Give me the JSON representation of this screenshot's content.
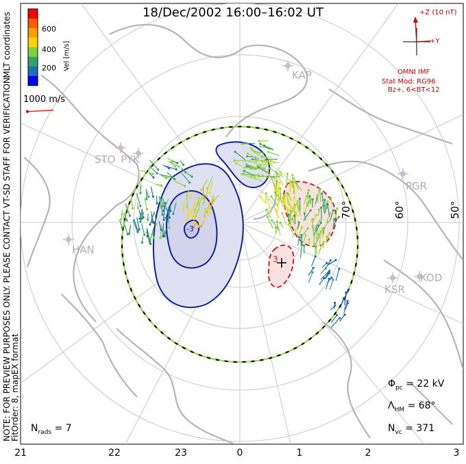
{
  "title": "18/Dec/2002 16:00–16:02 UT",
  "side_notes": {
    "preview_note": "NOTE: FOR PREVIEW PURPOSES ONLY. PLEASE CONTACT VT-SD STAFF FOR VERIFICATION.",
    "fit_note": "FitOrder: 8, mapEX format",
    "coords": "MLT coordinates"
  },
  "colorbar": {
    "label": "Vel [m/s]",
    "ticks": [
      "600",
      "400",
      "200"
    ],
    "colors": [
      "#0000ff",
      "#1f6fb4",
      "#35a06a",
      "#7fd23a",
      "#ffd700",
      "#ff9f00",
      "#ff5a00",
      "#ff0000"
    ]
  },
  "reference_vector": {
    "label": "1000 m/s"
  },
  "imf": {
    "z_label": "+Z (10 nT)",
    "y_label": "+Y",
    "source": "OMNI IMF",
    "model": "Stat Mod: RG96",
    "condition": "Bz+, 6<BT<12"
  },
  "stations": [
    "KAP",
    "STO",
    "PYK",
    "PGR",
    "HAN",
    "KSR",
    "KOD"
  ],
  "latitude_labels": [
    "70°",
    "60°",
    "50°"
  ],
  "mlt_ticks": [
    "21",
    "22",
    "23",
    "0",
    "1",
    "2",
    "3"
  ],
  "stats": {
    "phi_symbol": "Φ",
    "phi_sub": "pc",
    "phi_value": "= 22 kV",
    "lambda_symbol": "Λ",
    "lambda_sub": "HM",
    "lambda_value": "= 68°",
    "nvc_symbol": "N",
    "nvc_sub": "vc",
    "nvc_value": "= 371",
    "nrads_symbol": "N",
    "nrads_sub": "rads",
    "nrads_value": "= 7"
  },
  "contour_labels": [
    "-3",
    "3"
  ]
}
